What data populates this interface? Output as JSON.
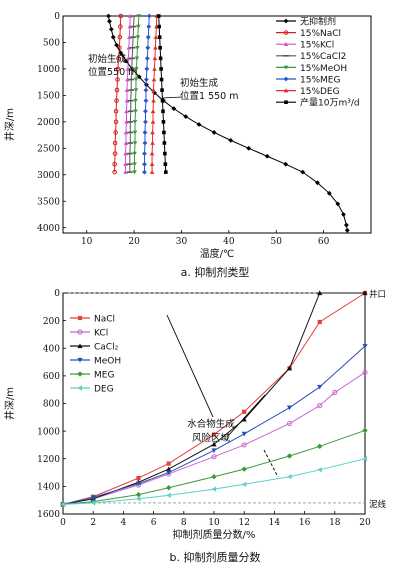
{
  "chart_data": [
    {
      "type": "line",
      "caption": "a. 抑制剂类型",
      "xlabel": "温度/℃",
      "ylabel": "井深/m",
      "xlim": [
        5,
        70
      ],
      "ylim": [
        4100,
        0
      ],
      "y_inverted": true,
      "xticks": [
        10,
        20,
        30,
        40,
        50,
        60
      ],
      "yticks": [
        0,
        500,
        1000,
        1500,
        2000,
        2500,
        3000,
        3500,
        4000
      ],
      "legend_position": "top-right",
      "series": [
        {
          "name": "无抑制剂",
          "color": "#000000",
          "marker": "diamond",
          "x": [
            14.6,
            14.8,
            15.2,
            15.6,
            16.3,
            17.2,
            18.3,
            19.6,
            21.1,
            22.6,
            24.3,
            26.2,
            28.4,
            30.9,
            33.7,
            36.9,
            40.4,
            44.2,
            48.1,
            52.0,
            55.6,
            58.7,
            61.2,
            63.0,
            64.2,
            64.8,
            65.0
          ],
          "y": [
            0,
            100,
            250,
            400,
            550,
            700,
            850,
            1000,
            1150,
            1300,
            1450,
            1600,
            1750,
            1900,
            2050,
            2200,
            2350,
            2500,
            2650,
            2800,
            2950,
            3150,
            3350,
            3550,
            3750,
            3950,
            4050
          ]
        },
        {
          "name": "15%NaCl",
          "color": "#d42020",
          "marker": "circle",
          "x": [
            17.2,
            17.1,
            17.0,
            16.9,
            16.7,
            16.6,
            16.5,
            16.4,
            16.3,
            16.2,
            16.2,
            16.1,
            16.0,
            16.0,
            15.9,
            15.9
          ],
          "y": [
            0,
            200,
            400,
            600,
            800,
            1000,
            1200,
            1400,
            1600,
            1800,
            2000,
            2200,
            2400,
            2600,
            2800,
            2950
          ]
        },
        {
          "name": "15%KCl",
          "color": "#cc55cc",
          "marker": "triangle",
          "x": [
            19.2,
            19.1,
            19.0,
            18.9,
            18.8,
            18.7,
            18.6,
            18.5,
            18.5,
            18.4,
            18.4,
            18.3,
            18.3,
            18.2,
            18.2,
            18.2
          ],
          "y": [
            0,
            200,
            400,
            600,
            800,
            1000,
            1200,
            1400,
            1600,
            1800,
            2000,
            2200,
            2400,
            2600,
            2800,
            2950
          ]
        },
        {
          "name": "15%CaCl2",
          "color": "#555555",
          "marker": "dash",
          "x": [
            20.0,
            19.9,
            19.8,
            19.7,
            19.6,
            19.5,
            19.4,
            19.4,
            19.3,
            19.3,
            19.2,
            19.2,
            19.2,
            19.1,
            19.1,
            19.1
          ],
          "y": [
            0,
            200,
            400,
            600,
            800,
            1000,
            1200,
            1400,
            1600,
            1800,
            2000,
            2200,
            2400,
            2600,
            2800,
            2950
          ]
        },
        {
          "name": "15%MeOH",
          "color": "#3a9a3a",
          "marker": "triangle-down",
          "x": [
            21.0,
            20.9,
            20.8,
            20.7,
            20.6,
            20.5,
            20.4,
            20.4,
            20.3,
            20.3,
            20.2,
            20.2,
            20.2,
            20.1,
            20.1,
            20.1
          ],
          "y": [
            0,
            200,
            400,
            600,
            800,
            1000,
            1200,
            1400,
            1600,
            1800,
            2000,
            2200,
            2400,
            2600,
            2800,
            2950
          ]
        },
        {
          "name": "15%MEG",
          "color": "#2a55c8",
          "marker": "diamond",
          "x": [
            23.2,
            23.1,
            23.0,
            22.9,
            22.8,
            22.7,
            22.6,
            22.5,
            22.5,
            22.4,
            22.4,
            22.3,
            22.3,
            22.2,
            22.2,
            22.2
          ],
          "y": [
            0,
            200,
            400,
            600,
            800,
            1000,
            1200,
            1400,
            1600,
            1800,
            2000,
            2200,
            2400,
            2600,
            2800,
            2950
          ]
        },
        {
          "name": "15%DEG",
          "color": "#e03030",
          "marker": "triangle",
          "x": [
            24.8,
            24.7,
            24.6,
            24.5,
            24.4,
            24.3,
            24.2,
            24.1,
            24.1,
            24.0,
            24.0,
            23.9,
            23.9,
            23.8,
            23.8,
            23.8
          ],
          "y": [
            0,
            200,
            400,
            600,
            800,
            1000,
            1200,
            1400,
            1600,
            1800,
            2000,
            2200,
            2400,
            2600,
            2800,
            2950
          ]
        },
        {
          "name": "产量10万m³/d",
          "color": "#000000",
          "marker": "square",
          "x": [
            25.2,
            25.3,
            25.4,
            25.5,
            25.6,
            25.7,
            25.8,
            25.9,
            26.0,
            26.1,
            26.2,
            26.3,
            26.4,
            26.5,
            26.6,
            26.7
          ],
          "y": [
            0,
            200,
            400,
            600,
            800,
            1000,
            1200,
            1400,
            1600,
            1800,
            2000,
            2200,
            2400,
            2600,
            2800,
            2950
          ]
        }
      ],
      "annotations": [
        {
          "text": [
            "初始生成",
            "位置550 m"
          ],
          "x": 17.0,
          "y": 550
        },
        {
          "text": [
            "初始生成",
            "位置1 550 m"
          ],
          "x": 26.2,
          "y": 1550
        }
      ]
    },
    {
      "type": "line",
      "caption": "b. 抑制剂质量分数",
      "xlabel": "抑制剂质量分数/%",
      "ylabel": "井深/m",
      "xlim": [
        0,
        20
      ],
      "ylim": [
        1600,
        0
      ],
      "y_inverted": true,
      "xticks": [
        0,
        2,
        4,
        6,
        8,
        10,
        12,
        14,
        16,
        18,
        20
      ],
      "yticks": [
        0,
        200,
        400,
        600,
        800,
        1000,
        1200,
        1400,
        1600
      ],
      "legend_position": "top-left",
      "reference_lines": [
        {
          "y": 0,
          "label": "井口"
        },
        {
          "y": 1520,
          "label": "泥线"
        }
      ],
      "region_label": [
        "水合物生成",
        "风险区域"
      ],
      "series": [
        {
          "name": "NaCl",
          "color": "#e04040",
          "marker": "square",
          "x": [
            0,
            2,
            5,
            7,
            10,
            12,
            15,
            17,
            20
          ],
          "y": [
            1530,
            1475,
            1340,
            1235,
            1025,
            860,
            545,
            210,
            0
          ]
        },
        {
          "name": "KCl",
          "color": "#cc66cc",
          "marker": "circle",
          "x": [
            0,
            2,
            5,
            7,
            10,
            12,
            15,
            17,
            18,
            20
          ],
          "y": [
            1530,
            1490,
            1390,
            1310,
            1185,
            1100,
            945,
            815,
            720,
            575
          ]
        },
        {
          "name": "CaCl₂",
          "color": "#111111",
          "marker": "triangle",
          "x": [
            0,
            2,
            5,
            7,
            10,
            12,
            15,
            17,
            20
          ],
          "y": [
            1530,
            1490,
            1370,
            1275,
            1095,
            915,
            545,
            0,
            0
          ]
        },
        {
          "name": "MeOH",
          "color": "#2a4fb8",
          "marker": "triangle-down",
          "x": [
            0,
            2,
            5,
            7,
            10,
            12,
            15,
            17,
            20
          ],
          "y": [
            1530,
            1480,
            1380,
            1300,
            1140,
            1020,
            830,
            680,
            385
          ]
        },
        {
          "name": "MEG",
          "color": "#3a9a3a",
          "marker": "diamond",
          "x": [
            0,
            2,
            5,
            7,
            10,
            12,
            15,
            17,
            20
          ],
          "y": [
            1530,
            1510,
            1460,
            1410,
            1330,
            1275,
            1180,
            1110,
            995
          ]
        },
        {
          "name": "DEG",
          "color": "#5fd0c8",
          "marker": "triangle-left",
          "x": [
            0,
            2,
            5,
            7,
            10,
            12,
            15,
            17,
            20
          ],
          "y": [
            1530,
            1520,
            1490,
            1465,
            1420,
            1385,
            1330,
            1280,
            1200
          ]
        }
      ]
    }
  ]
}
